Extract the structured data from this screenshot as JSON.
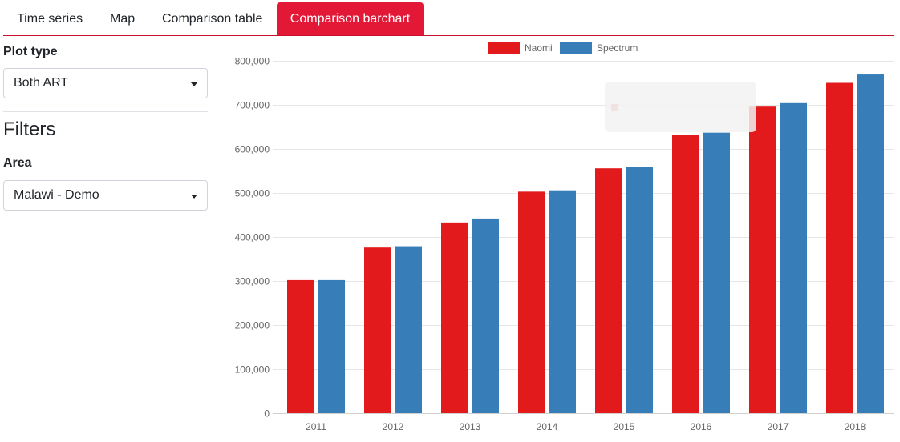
{
  "tabs": [
    {
      "label": "Time series",
      "active": false
    },
    {
      "label": "Map",
      "active": false
    },
    {
      "label": "Comparison table",
      "active": false
    },
    {
      "label": "Comparison barchart",
      "active": true
    }
  ],
  "sidebar": {
    "plot_type_label": "Plot type",
    "plot_type_value": "Both ART",
    "filters_title": "Filters",
    "area_label": "Area",
    "area_value": "Malawi - Demo"
  },
  "colors": {
    "accent": "#e31837",
    "naomi": "#e31a1c",
    "spectrum": "#377eb8"
  },
  "chart_data": {
    "type": "bar",
    "categories": [
      "2011",
      "2012",
      "2013",
      "2014",
      "2015",
      "2016",
      "2017",
      "2018"
    ],
    "series": [
      {
        "name": "Naomi",
        "color": "#e31a1c",
        "values": [
          302000,
          376000,
          433000,
          503000,
          556000,
          632000,
          696000,
          750000
        ]
      },
      {
        "name": "Spectrum",
        "color": "#377eb8",
        "values": [
          302000,
          379000,
          442000,
          506000,
          559000,
          637000,
          704000,
          769000
        ]
      }
    ],
    "ylim": [
      0,
      800000
    ],
    "yticks": [
      "0",
      "100,000",
      "200,000",
      "300,000",
      "400,000",
      "500,000",
      "600,000",
      "700,000",
      "800,000"
    ],
    "grid": true,
    "legend_position": "top"
  }
}
